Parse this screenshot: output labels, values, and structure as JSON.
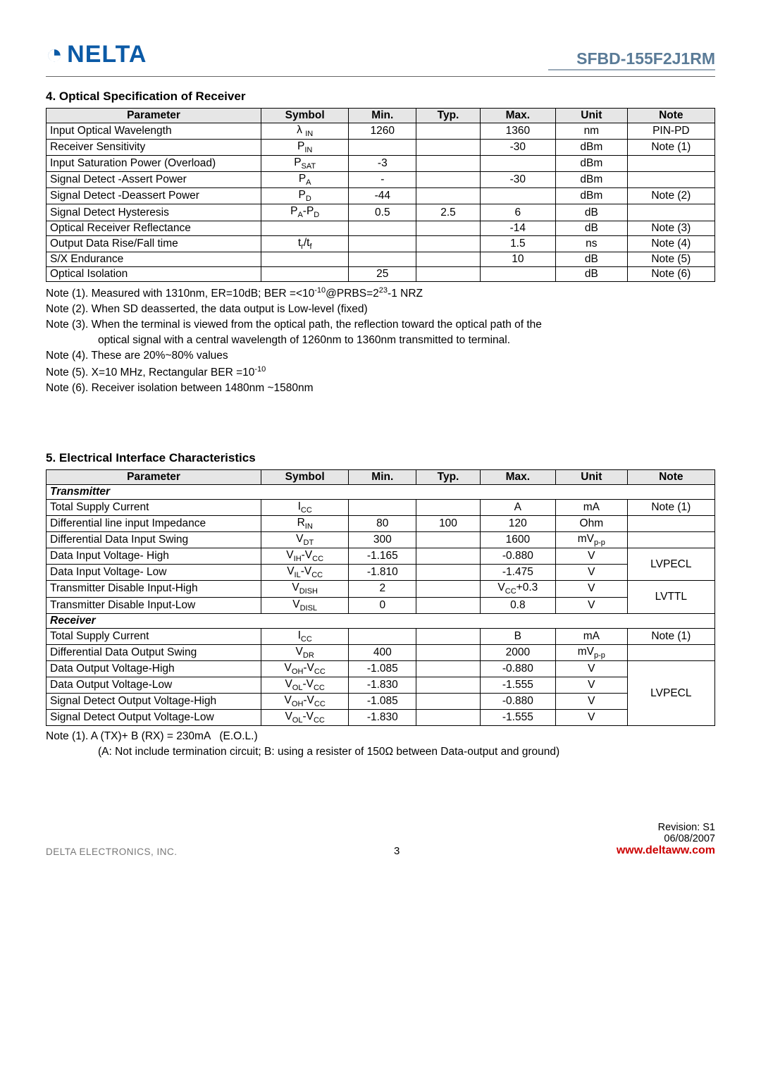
{
  "header": {
    "logo_text": "NELTA",
    "part_no": "SFBD-155F2J1RM"
  },
  "section4": {
    "title": "4. Optical Specification of Receiver",
    "columns": [
      "Parameter",
      "Symbol",
      "Min.",
      "Typ.",
      "Max.",
      "Unit",
      "Note"
    ],
    "rows": [
      {
        "param": "Input Optical Wavelength",
        "sym_html": "&lambda; <span class='sub'>IN</span>",
        "min": "1260",
        "typ": "",
        "max": "1360",
        "unit": "nm",
        "note": "PIN-PD"
      },
      {
        "param": "Receiver Sensitivity",
        "sym_html": "P<span class='sub'>IN</span>",
        "min": "",
        "typ": "",
        "max": "-30",
        "unit": "dBm",
        "note": "Note (1)"
      },
      {
        "param": "Input Saturation Power (Overload)",
        "sym_html": "P<span class='sub'>SAT</span>",
        "min": "-3",
        "typ": "",
        "max": "",
        "unit": "dBm",
        "note": ""
      },
      {
        "param": "Signal Detect -Assert Power",
        "sym_html": "P<span class='sub'>A</span>",
        "min": "-",
        "typ": "",
        "max": "-30",
        "unit": "dBm",
        "note": ""
      },
      {
        "param": "Signal Detect -Deassert Power",
        "sym_html": "P<span class='sub'>D</span>",
        "min": "-44",
        "typ": "",
        "max": "",
        "unit": "dBm",
        "note": "Note (2)"
      },
      {
        "param": "Signal Detect Hysteresis",
        "sym_html": "P<span class='sub'>A</span>-P<span class='sub'>D</span>",
        "min": "0.5",
        "typ": "2.5",
        "max": "6",
        "unit": "dB",
        "note": ""
      },
      {
        "param": "Optical Receiver Reflectance",
        "sym_html": "",
        "min": "",
        "typ": "",
        "max": "-14",
        "unit": "dB",
        "note": "Note (3)"
      },
      {
        "param": "Output Data Rise/Fall time",
        "sym_html": "t<span class='sub'>r</span>/t<span class='sub'>f</span>",
        "min": "",
        "typ": "",
        "max": "1.5",
        "unit": "ns",
        "note": "Note (4)"
      },
      {
        "param": "S/X Endurance",
        "sym_html": "",
        "min": "",
        "typ": "",
        "max": "10",
        "unit": "dB",
        "note": "Note (5)"
      },
      {
        "param": "Optical Isolation",
        "sym_html": "",
        "min": "25",
        "typ": "",
        "max": "",
        "unit": "dB",
        "note": "Note (6)"
      }
    ],
    "notes": [
      {
        "html": "Note (1). Measured with 1310nm, ER=10dB; BER =&lt;10<span class='sup'>-10</span>@PRBS=2<span class='sup'>23</span>-1 NRZ"
      },
      {
        "html": "Note (2). When SD deasserted, the data output is Low-level (fixed)"
      },
      {
        "html": "Note (3). When the terminal is viewed from the optical path, the reflection toward the optical path of the"
      },
      {
        "html": "optical signal with a central wavelength of 1260nm to 1360nm transmitted to terminal.",
        "indent": true
      },
      {
        "html": "Note (4). These are 20%~80% values"
      },
      {
        "html": "Note (5). X=10 MHz, Rectangular BER =10<span class='sup'>-10</span>"
      },
      {
        "html": "Note (6). Receiver isolation between 1480nm ~1580nm"
      }
    ]
  },
  "section5": {
    "title": "5. Electrical Interface Characteristics",
    "columns": [
      "Parameter",
      "Symbol",
      "Min.",
      "Typ.",
      "Max.",
      "Unit",
      "Note"
    ],
    "tx_head": "Transmitter",
    "rx_head": "Receiver",
    "tx_rows": [
      {
        "param": "Total Supply Current",
        "sym_html": "I<span class='sub'>CC</span>",
        "min": "",
        "typ": "",
        "max": "A",
        "unit": "mA",
        "note": "Note (1)"
      },
      {
        "param": "Differential line input Impedance",
        "sym_html": "R<span class='sub'>IN</span>",
        "min": "80",
        "typ": "100",
        "max": "120",
        "unit": "Ohm",
        "note": ""
      },
      {
        "param": "Differential Data Input Swing",
        "sym_html": "V<span class='sub'>DT</span>",
        "min": "300",
        "typ": "",
        "max": "1600",
        "unit_html": "mV<span class='sub'>p-p</span>",
        "note": ""
      },
      {
        "param": "Data Input Voltage- High",
        "sym_html": "V<span class='sub'>IH</span>-V<span class='sub'>CC</span>",
        "min": "-1.165",
        "typ": "",
        "max": "-0.880",
        "unit": "V",
        "note": "LVPECL",
        "noterows": 2
      },
      {
        "param": "Data Input Voltage- Low",
        "sym_html": "V<span class='sub'>IL</span>-V<span class='sub'>CC</span>",
        "min": "-1.810",
        "typ": "",
        "max": "-1.475",
        "unit": "V"
      },
      {
        "param": "Transmitter Disable Input-High",
        "sym_html": "V<span class='sub'>DISH</span>",
        "min": "2",
        "typ": "",
        "max_html": "V<span class='sub'>CC</span>+0.3",
        "unit": "V",
        "note": "LVTTL",
        "noterows": 2
      },
      {
        "param": "Transmitter Disable Input-Low",
        "sym_html": "V<span class='sub'>DISL</span>",
        "min": "0",
        "typ": "",
        "max": "0.8",
        "unit": "V"
      }
    ],
    "rx_rows": [
      {
        "param": "Total Supply Current",
        "sym_html": "I<span class='sub'>CC</span>",
        "min": "",
        "typ": "",
        "max": "B",
        "unit": "mA",
        "note": "Note (1)"
      },
      {
        "param": "Differential Data Output Swing",
        "sym_html": "V<span class='sub'>DR</span>",
        "min": "400",
        "typ": "",
        "max": "2000",
        "unit_html": "mV<span class='sub'>p-p</span>",
        "note": ""
      },
      {
        "param": "Data Output Voltage-High",
        "sym_html": "V<span class='sub'>OH</span>-V<span class='sub'>CC</span>",
        "min": "-1.085",
        "typ": "",
        "max": "-0.880",
        "unit": "V",
        "note": "LVPECL",
        "noterows": 4
      },
      {
        "param": "Data Output Voltage-Low",
        "sym_html": "V<span class='sub'>OL</span>-V<span class='sub'>CC</span>",
        "min": "-1.830",
        "typ": "",
        "max": "-1.555",
        "unit": "V"
      },
      {
        "param": "Signal Detect Output Voltage-High",
        "sym_html": "V<span class='sub'>OH</span>-V<span class='sub'>CC</span>",
        "min": "-1.085",
        "typ": "",
        "max": "-0.880",
        "unit": "V"
      },
      {
        "param": "Signal Detect Output Voltage-Low",
        "sym_html": "V<span class='sub'>OL</span>-V<span class='sub'>CC</span>",
        "min": "-1.830",
        "typ": "",
        "max": "-1.555",
        "unit": "V"
      }
    ],
    "notes": [
      {
        "html": "Note (1). A (TX)+ B (RX) = 230mA &nbsp;&nbsp;(E.O.L.)"
      },
      {
        "html": "(A: Not include termination circuit; B: using a resister of 150&Omega; between Data-output and ground)",
        "indent": true
      }
    ]
  },
  "footer": {
    "page": "3",
    "rev": "Revision:  S1",
    "date": "06/08/2007",
    "company": "DELTA ELECTRONICS, INC.",
    "link": "www.deltaww.com"
  }
}
